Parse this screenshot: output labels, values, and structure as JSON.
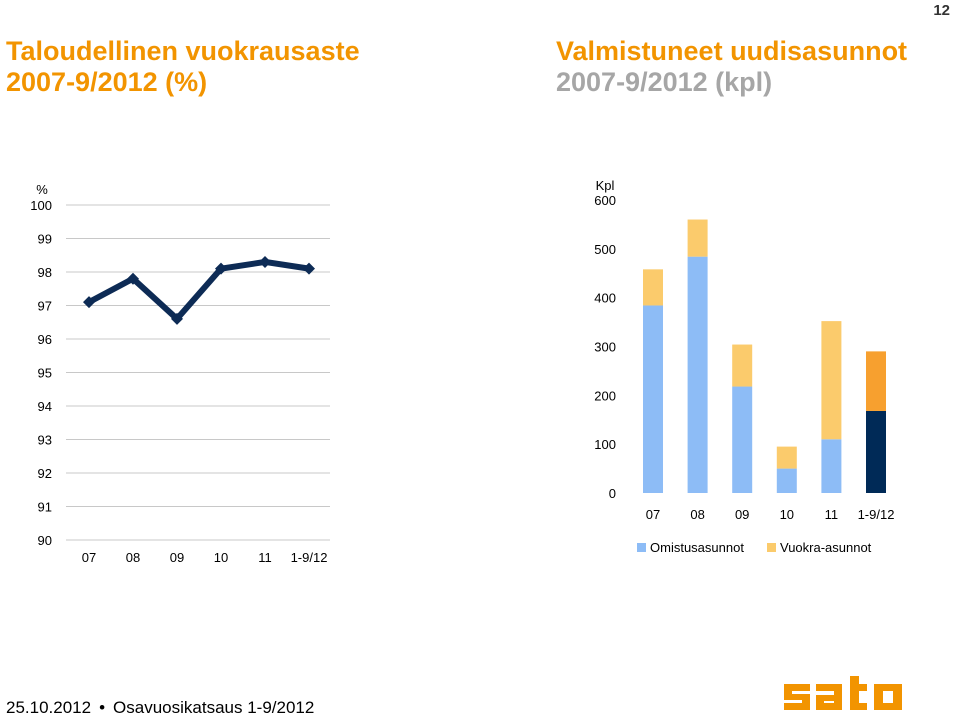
{
  "page_number": "12",
  "left_chart_title": {
    "line1": "Taloudellinen vuokrausaste",
    "line2": "2007-9/2012 (%)"
  },
  "right_chart_title": {
    "line1": "Valmistuneet uudisasunnot",
    "line2": "2007-9/2012 (kpl)"
  },
  "footer": {
    "date": "25.10.2012",
    "separator": "•",
    "text": "Osavuosikatsaus 1-9/2012"
  },
  "logo": {
    "text": "sato",
    "color": "#f29400"
  },
  "chart_data": [
    {
      "type": "line",
      "title": "Taloudellinen vuokrausaste 2007-9/2012 (%)",
      "unit_label": "%",
      "categories": [
        "07",
        "08",
        "09",
        "10",
        "11",
        "1-9/12"
      ],
      "series": [
        {
          "values": [
            97.1,
            97.8,
            96.6,
            98.1,
            98.3,
            98.1
          ],
          "color": "#0d2b55"
        }
      ],
      "yticks": [
        90,
        91,
        92,
        93,
        94,
        95,
        96,
        97,
        98,
        99,
        100
      ],
      "ylim": [
        90,
        100
      ],
      "grid": true
    },
    {
      "type": "bar",
      "stacked": true,
      "title": "Valmistuneet uudisasunnot 2007-9/2012 (kpl)",
      "unit_label": "Kpl",
      "categories": [
        "07",
        "08",
        "09",
        "10",
        "11",
        "1-9/12"
      ],
      "series": [
        {
          "name": "Omistusasunnot",
          "values": [
            384,
            484,
            218,
            50,
            110,
            168
          ],
          "color": "#8dbcf6",
          "last_color": "#002a57"
        },
        {
          "name": "Vuokra-asunnot",
          "values": [
            74,
            76,
            86,
            45,
            242,
            122
          ],
          "color": "#fbcb6c",
          "last_color": "#f7a02f"
        }
      ],
      "yticks": [
        0,
        100,
        200,
        300,
        400,
        500,
        600
      ],
      "ylim": [
        0,
        600
      ],
      "legend": "bottom",
      "grid": false
    }
  ]
}
